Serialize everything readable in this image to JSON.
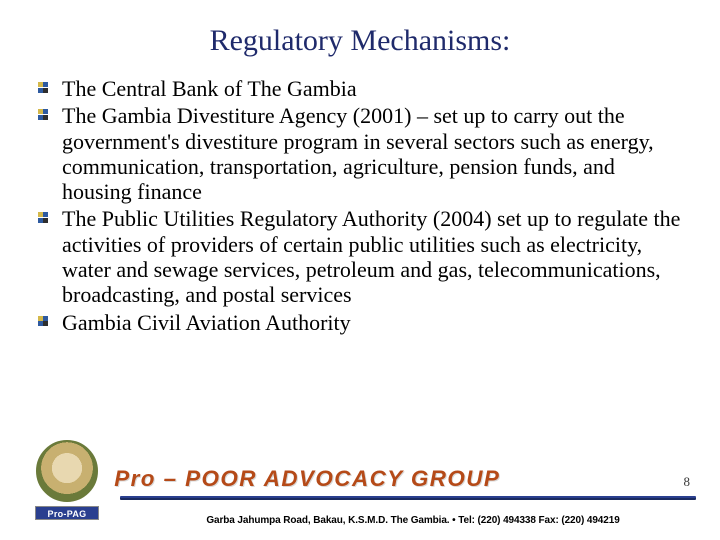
{
  "title": "Regulatory Mechanisms:",
  "title_color": "#1f2a6b",
  "bullets": [
    "The Central Bank of The Gambia",
    "The Gambia Divestiture Agency (2001) – set up to carry out the government's divestiture program in several sectors such as energy, communication, transportation, agriculture, pension funds, and housing finance",
    "The Public Utilities Regulatory Authority (2004) set up to regulate the activities of providers of certain public utilities such as electricity, water and sewage services, petroleum and gas, telecommunications, broadcasting, and postal services",
    "Gambia Civil Aviation Authority"
  ],
  "bullet_text_fontsize": 22,
  "bullet_marker_colors": [
    "#d4b84a",
    "#2e5aa0",
    "#2e5aa0",
    "#2e2e2e"
  ],
  "separator_color": "#2a3f8f",
  "page_number": "8",
  "footer_text": "Garba Jahumpa Road, Bakau, K.S.M.D. The Gambia. • Tel: (220) 494338 Fax: (220) 494219",
  "brand_text": "Pro – POOR ADVOCACY GROUP",
  "brand_text_color": "#b54a18",
  "logo_sub_label": "Pro-PAG",
  "background_color": "#ffffff"
}
